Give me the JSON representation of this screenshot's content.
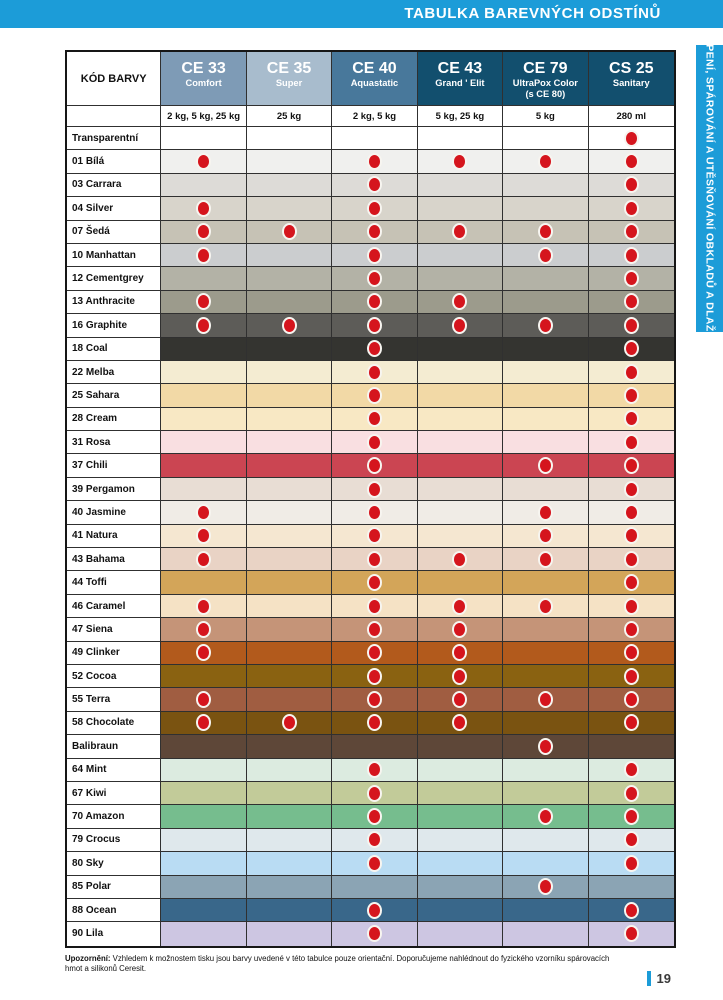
{
  "page": {
    "title": "TABULKA BAREVNÝCH ODSTÍNŮ",
    "side_tab": "LEPENÍ, SPÁROVÁNÍ A UTĚSŇOVÁNÍ OBKLADŮ A DLAŽBY",
    "note_label": "Upozornění:",
    "note_text": " Vzhledem k možnostem tisku jsou barvy uvedené v této tabulce pouze orientační. Doporučujeme nahlédnout do fyzického vzorníku spárovacích hmot a silikonů Ceresit.",
    "page_number": "19",
    "accent_blue": "#1c9cd8",
    "dot_color": "#d5151d"
  },
  "table": {
    "corner_label": "KÓD BARVY",
    "columns": [
      {
        "code": "CE 33",
        "name": "Comfort",
        "sub": "",
        "bg": "#7e9bb6",
        "size": "2 kg, 5 kg, 25 kg"
      },
      {
        "code": "CE 35",
        "name": "Super",
        "sub": "",
        "bg": "#a8bccd",
        "size": "25 kg"
      },
      {
        "code": "CE 40",
        "name": "Aquastatic",
        "sub": "",
        "bg": "#48789b",
        "size": "2 kg, 5 kg"
      },
      {
        "code": "CE 43",
        "name": "Grand ' Elit",
        "sub": "",
        "bg": "#124f6e",
        "size": "5 kg, 25 kg"
      },
      {
        "code": "CE 79",
        "name": "UltraPox Color",
        "sub": "(s CE 80)",
        "bg": "#124f6e",
        "size": "5 kg"
      },
      {
        "code": "CS 25",
        "name": "Sanitary",
        "sub": "",
        "bg": "#124f6e",
        "size": "280 ml"
      }
    ],
    "rows": [
      {
        "label": "Transparentní",
        "color": "#ffffff",
        "dots": [
          0,
          0,
          0,
          0,
          0,
          1
        ]
      },
      {
        "label": "01 Bílá",
        "color": "#f0f0ee",
        "dots": [
          1,
          0,
          1,
          1,
          1,
          1
        ]
      },
      {
        "label": "03 Carrara",
        "color": "#dddbd7",
        "dots": [
          0,
          0,
          1,
          0,
          0,
          1
        ]
      },
      {
        "label": "04 Silver",
        "color": "#d8d4cb",
        "dots": [
          1,
          0,
          1,
          0,
          0,
          1
        ]
      },
      {
        "label": "07 Šedá",
        "color": "#c6c2b5",
        "dots": [
          1,
          1,
          1,
          1,
          1,
          1
        ]
      },
      {
        "label": "10 Manhattan",
        "color": "#cbcdcf",
        "dots": [
          1,
          0,
          1,
          0,
          1,
          1
        ]
      },
      {
        "label": "12 Cementgrey",
        "color": "#b3b2a6",
        "dots": [
          0,
          0,
          1,
          0,
          0,
          1
        ]
      },
      {
        "label": "13 Anthracite",
        "color": "#9c9b8c",
        "dots": [
          1,
          0,
          1,
          1,
          0,
          1
        ]
      },
      {
        "label": "16 Graphite",
        "color": "#5d5c58",
        "dots": [
          1,
          1,
          1,
          1,
          1,
          1
        ]
      },
      {
        "label": "18 Coal",
        "color": "#343430",
        "dots": [
          0,
          0,
          1,
          0,
          0,
          1
        ]
      },
      {
        "label": "22 Melba",
        "color": "#f4ecd2",
        "dots": [
          0,
          0,
          1,
          0,
          0,
          1
        ]
      },
      {
        "label": "25 Sahara",
        "color": "#f2d9a6",
        "dots": [
          0,
          0,
          1,
          0,
          0,
          1
        ]
      },
      {
        "label": "28 Cream",
        "color": "#f8e8c4",
        "dots": [
          0,
          0,
          1,
          0,
          0,
          1
        ]
      },
      {
        "label": "31 Rosa",
        "color": "#f9dfe1",
        "dots": [
          0,
          0,
          1,
          0,
          0,
          1
        ]
      },
      {
        "label": "37 Chili",
        "color": "#cb4552",
        "dots": [
          0,
          0,
          1,
          0,
          1,
          1
        ]
      },
      {
        "label": "39 Pergamon",
        "color": "#e8ddd4",
        "dots": [
          0,
          0,
          1,
          0,
          0,
          1
        ]
      },
      {
        "label": "40 Jasmine",
        "color": "#f0ece6",
        "dots": [
          1,
          0,
          1,
          0,
          1,
          1
        ]
      },
      {
        "label": "41 Natura",
        "color": "#f5e7d1",
        "dots": [
          1,
          0,
          1,
          0,
          1,
          1
        ]
      },
      {
        "label": "43 Bahama",
        "color": "#e9d3c5",
        "dots": [
          1,
          0,
          1,
          1,
          1,
          1
        ]
      },
      {
        "label": "44 Toffi",
        "color": "#d3a559",
        "dots": [
          0,
          0,
          1,
          0,
          0,
          1
        ]
      },
      {
        "label": "46 Caramel",
        "color": "#f5e2c5",
        "dots": [
          1,
          0,
          1,
          1,
          1,
          1
        ]
      },
      {
        "label": "47 Siena",
        "color": "#c59478",
        "dots": [
          1,
          0,
          1,
          1,
          0,
          1
        ]
      },
      {
        "label": "49 Clinker",
        "color": "#b25a1c",
        "dots": [
          1,
          0,
          1,
          1,
          0,
          1
        ]
      },
      {
        "label": "52 Cocoa",
        "color": "#8a6211",
        "dots": [
          0,
          0,
          1,
          1,
          0,
          1
        ]
      },
      {
        "label": "55 Terra",
        "color": "#a05d41",
        "dots": [
          1,
          0,
          1,
          1,
          1,
          1
        ]
      },
      {
        "label": "58 Chocolate",
        "color": "#7a5311",
        "dots": [
          1,
          1,
          1,
          1,
          0,
          1
        ]
      },
      {
        "label": "Balibraun",
        "color": "#5e4738",
        "dots": [
          0,
          0,
          0,
          0,
          1,
          0
        ]
      },
      {
        "label": "64 Mint",
        "color": "#dcebe0",
        "dots": [
          0,
          0,
          1,
          0,
          0,
          1
        ]
      },
      {
        "label": "67 Kiwi",
        "color": "#c2cb99",
        "dots": [
          0,
          0,
          1,
          0,
          0,
          1
        ]
      },
      {
        "label": "70 Amazon",
        "color": "#76bd8e",
        "dots": [
          0,
          0,
          1,
          0,
          1,
          1
        ]
      },
      {
        "label": "79 Crocus",
        "color": "#dfe8ec",
        "dots": [
          0,
          0,
          1,
          0,
          0,
          1
        ]
      },
      {
        "label": "80 Sky",
        "color": "#b9dcf3",
        "dots": [
          0,
          0,
          1,
          0,
          0,
          1
        ]
      },
      {
        "label": "85 Polar",
        "color": "#8ba4b4",
        "dots": [
          0,
          0,
          0,
          0,
          1,
          0
        ]
      },
      {
        "label": "88 Ocean",
        "color": "#39678a",
        "dots": [
          0,
          0,
          1,
          0,
          0,
          1
        ]
      },
      {
        "label": "90 Lila",
        "color": "#cdc6e2",
        "dots": [
          0,
          0,
          1,
          0,
          0,
          1
        ]
      }
    ]
  }
}
